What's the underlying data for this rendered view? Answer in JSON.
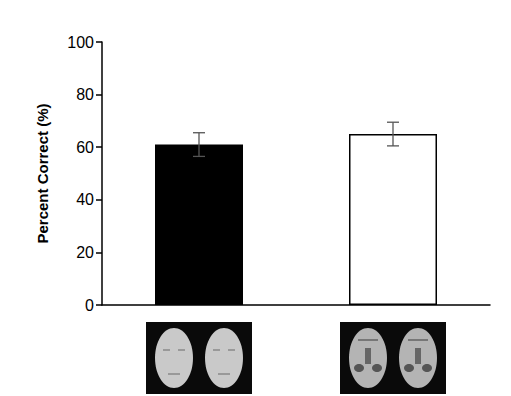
{
  "chart_data": {
    "type": "bar",
    "ylabel": "Percent Correct (%)",
    "categories": [
      null,
      null
    ],
    "values": [
      61,
      65
    ],
    "errors": [
      4.5,
      4.5
    ],
    "colors": [
      "#000000",
      "#ffffff"
    ],
    "ylim": [
      0,
      100
    ],
    "yticks": [
      0,
      20,
      40,
      60,
      80,
      100
    ],
    "grid": false
  }
}
